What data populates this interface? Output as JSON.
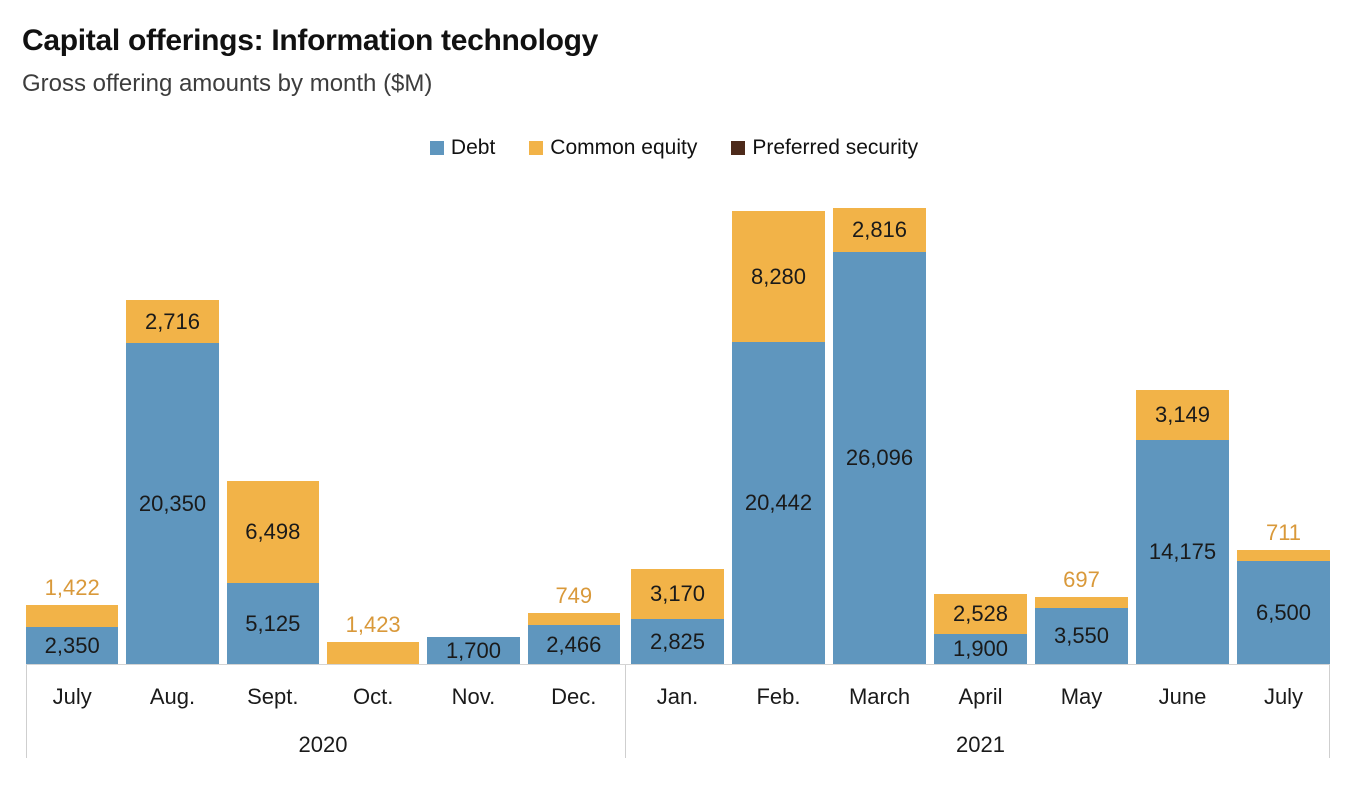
{
  "title": "Capital offerings: Information technology",
  "subtitle": "Gross offering amounts by month ($M)",
  "legend": {
    "items": [
      {
        "id": "debt",
        "label": "Debt",
        "color": "#5f96be"
      },
      {
        "id": "common_equity",
        "label": "Common equity",
        "color": "#f2b348"
      },
      {
        "id": "preferred_security",
        "label": "Preferred security",
        "color": "#4d2a1a"
      }
    ]
  },
  "colors": {
    "debt": "#5f96be",
    "common_equity": "#f2b348",
    "preferred_security": "#4d2a1a",
    "above_label_text": "#d9993a",
    "inside_label_text": "#1a1a1a",
    "axis_line": "#cfcfcf"
  },
  "chart_data": {
    "type": "bar",
    "stacked": true,
    "title": "Capital offerings: Information technology",
    "subtitle": "Gross offering amounts by month ($M)",
    "unit": "$M",
    "legend_position": "top",
    "legend_entries": [
      "Debt",
      "Common equity",
      "Preferred security"
    ],
    "value_axis": {
      "visible": false,
      "range": [
        0,
        29000
      ]
    },
    "grid": false,
    "groups": [
      {
        "year": "2020",
        "bars": [
          {
            "month": "July",
            "debt": 2350,
            "common_equity": 1422,
            "preferred_security": 0
          },
          {
            "month": "Aug.",
            "debt": 20350,
            "common_equity": 2716,
            "preferred_security": 0
          },
          {
            "month": "Sept.",
            "debt": 5125,
            "common_equity": 6498,
            "preferred_security": 0
          },
          {
            "month": "Oct.",
            "debt": 0,
            "common_equity": 1423,
            "preferred_security": 0
          },
          {
            "month": "Nov.",
            "debt": 1700,
            "common_equity": 0,
            "preferred_security": 0
          },
          {
            "month": "Dec.",
            "debt": 2466,
            "common_equity": 749,
            "preferred_security": 0
          }
        ]
      },
      {
        "year": "2021",
        "bars": [
          {
            "month": "Jan.",
            "debt": 2825,
            "common_equity": 3170,
            "preferred_security": 0
          },
          {
            "month": "Feb.",
            "debt": 20442,
            "common_equity": 8280,
            "preferred_security": 0
          },
          {
            "month": "March",
            "debt": 26096,
            "common_equity": 2816,
            "preferred_security": 0
          },
          {
            "month": "April",
            "debt": 1900,
            "common_equity": 2528,
            "preferred_security": 0
          },
          {
            "month": "May",
            "debt": 3550,
            "common_equity": 697,
            "preferred_security": 0
          },
          {
            "month": "June",
            "debt": 14175,
            "common_equity": 3149,
            "preferred_security": 0
          },
          {
            "month": "July",
            "debt": 6500,
            "common_equity": 711,
            "preferred_security": 0
          }
        ]
      }
    ]
  }
}
